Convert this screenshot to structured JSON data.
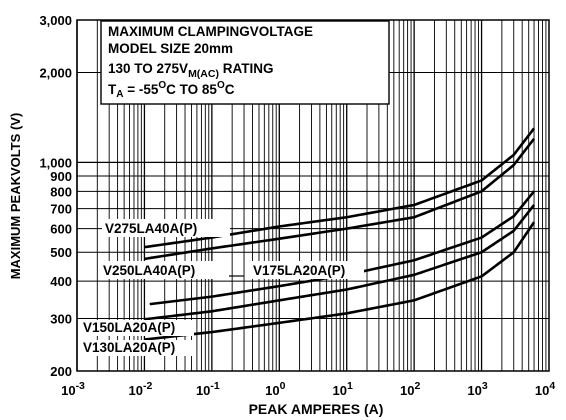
{
  "chart_data": {
    "type": "line",
    "xlabel": "PEAK AMPERES (A)",
    "ylabel": "MAXIMUM PEAKVOLTS (V)",
    "x_scale": "log",
    "y_scale": "log",
    "xlim": [
      0.001,
      10000
    ],
    "ylim": [
      200,
      3000
    ],
    "grid": true,
    "x_ticks": [
      {
        "value": 0.001,
        "base": "10",
        "exp": "-3"
      },
      {
        "value": 0.01,
        "base": "10",
        "exp": "-2"
      },
      {
        "value": 0.1,
        "base": "10",
        "exp": "-1"
      },
      {
        "value": 1,
        "base": "10",
        "exp": "0"
      },
      {
        "value": 10,
        "base": "10",
        "exp": "1"
      },
      {
        "value": 100,
        "base": "10",
        "exp": "2"
      },
      {
        "value": 1000,
        "base": "10",
        "exp": "3"
      },
      {
        "value": 10000,
        "base": "10",
        "exp": "4"
      }
    ],
    "y_ticks": [
      {
        "value": 200,
        "label": "200"
      },
      {
        "value": 300,
        "label": "300"
      },
      {
        "value": 400,
        "label": "400"
      },
      {
        "value": 500,
        "label": "500"
      },
      {
        "value": 600,
        "label": "600"
      },
      {
        "value": 700,
        "label": "700"
      },
      {
        "value": 800,
        "label": "800"
      },
      {
        "value": 900,
        "label": "900"
      },
      {
        "value": 1000,
        "label": "1,000"
      },
      {
        "value": 2000,
        "label": "2,000"
      },
      {
        "value": 3000,
        "label": "3,000"
      }
    ],
    "annotation": {
      "line1": "MAXIMUM CLAMPINGVOLTAGE",
      "line2": "MODEL SIZE 20mm",
      "line3_pre": "130 TO 275V",
      "line3_sub": "M(AC)",
      "line3_post": " RATING",
      "line4_a": "T",
      "line4_asub": "A",
      "line4_b": " = -55",
      "line4_bsup": "O",
      "line4_c": "C TO 85",
      "line4_csup": "O",
      "line4_d": "C"
    },
    "series": [
      {
        "name": "V275LA40A(P)",
        "x": [
          0.01,
          0.1,
          1,
          10,
          100,
          1000,
          3000,
          6000
        ],
        "y": [
          520,
          560,
          610,
          655,
          720,
          870,
          1060,
          1300
        ]
      },
      {
        "name": "V250LA40A(P)",
        "x": [
          0.01,
          0.1,
          1,
          10,
          100,
          1000,
          3000,
          6000
        ],
        "y": [
          475,
          515,
          555,
          600,
          655,
          800,
          980,
          1200
        ]
      },
      {
        "name": "V175LA20A(P)",
        "x": [
          0.012,
          0.1,
          1,
          10,
          100,
          1000,
          3000,
          6000
        ],
        "y": [
          335,
          355,
          385,
          420,
          470,
          560,
          660,
          800
        ]
      },
      {
        "name": "V150LA20A(P)",
        "x": [
          0.01,
          0.1,
          1,
          10,
          100,
          1000,
          3000,
          6000
        ],
        "y": [
          298,
          317,
          345,
          375,
          420,
          500,
          590,
          720
        ]
      },
      {
        "name": "V130LA20A(P)",
        "x": [
          0.01,
          0.1,
          1,
          10,
          100,
          1000,
          3000,
          6000
        ],
        "y": [
          255,
          270,
          290,
          312,
          345,
          415,
          500,
          630
        ]
      }
    ]
  }
}
